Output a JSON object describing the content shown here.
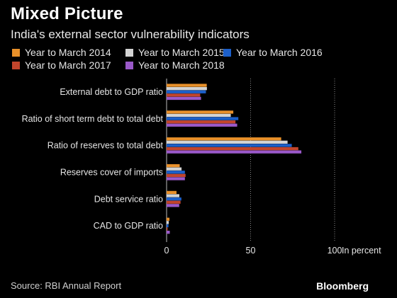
{
  "header": {
    "title": "Mixed Picture",
    "subtitle": "India's external sector vulnerability indicators"
  },
  "footer": {
    "source": "Source: RBI Annual Report",
    "brand": "Bloomberg"
  },
  "colors": {
    "background": "#000000",
    "gridline": "#8a8a8a",
    "axis": "#bdbdbd",
    "text": "#e6e6e6"
  },
  "chart_data": {
    "type": "bar",
    "orientation": "horizontal",
    "title": "Mixed Picture",
    "subtitle": "India's external sector vulnerability indicators",
    "unit_label": "In percent",
    "xlim": [
      0,
      100
    ],
    "xticks": [
      0,
      50,
      100
    ],
    "grid": true,
    "legend_position": "top",
    "categories": [
      "External debt to GDP ratio",
      "Ratio of short term debt to total debt",
      "Ratio of reserves to total debt",
      "Reserves cover of imports",
      "Debt service ratio",
      "CAD to GDP ratio"
    ],
    "series": [
      {
        "name": "Year to March 2014",
        "color": "#e8902a",
        "values": [
          23.9,
          39.7,
          68.2,
          7.8,
          5.9,
          1.7
        ]
      },
      {
        "name": "Year to March 2015",
        "color": "#d3d3d3",
        "values": [
          24.0,
          38.2,
          72.0,
          8.9,
          7.6,
          1.3
        ]
      },
      {
        "name": "Year to March 2016",
        "color": "#1c5fc9",
        "values": [
          23.4,
          42.7,
          74.5,
          10.9,
          8.8,
          1.1
        ]
      },
      {
        "name": "Year to March 2017",
        "color": "#c2452c",
        "values": [
          20.0,
          41.0,
          78.4,
          11.3,
          8.3,
          0.6
        ]
      },
      {
        "name": "Year to March 2018",
        "color": "#9a59c9",
        "values": [
          20.5,
          42.0,
          80.2,
          10.9,
          7.5,
          1.9
        ]
      }
    ]
  }
}
